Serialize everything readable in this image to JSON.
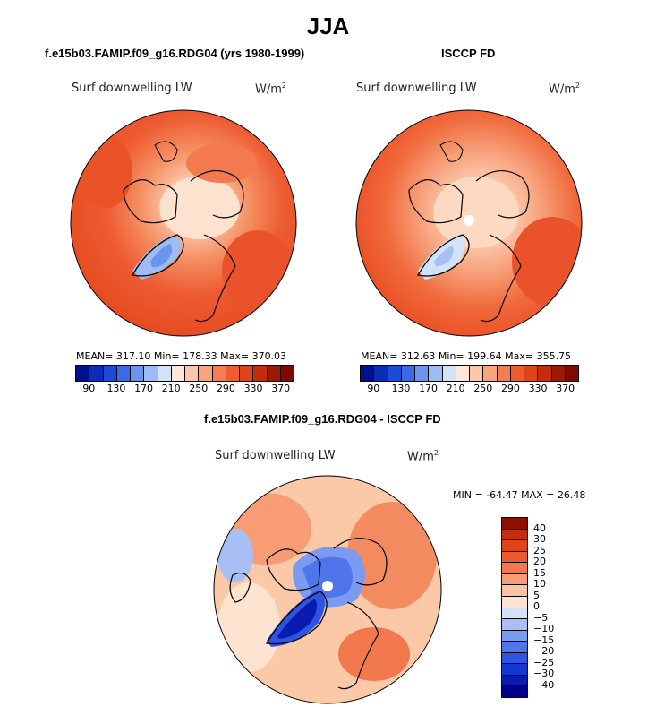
{
  "title": "JJA",
  "panels": {
    "left": {
      "title": "f.e15b03.FAMIP.f09_g16.RDG04 (yrs 1980-1999)",
      "label": "Surf downwelling LW",
      "units_base": "W/m",
      "units_exp": "2",
      "stats": "MEAN= 317.10   Min= 178.33   Max= 370.03"
    },
    "right": {
      "title": "ISCCP FD",
      "label": "Surf downwelling LW",
      "units_base": "W/m",
      "units_exp": "2",
      "stats": "MEAN= 312.63   Min= 199.64   Max= 355.75"
    },
    "diff": {
      "title": "f.e15b03.FAMIP.f09_g16.RDG04 - ISCCP FD",
      "label": "Surf downwelling LW",
      "units_base": "W/m",
      "units_exp": "2",
      "stats": "MIN = -64.47 MAX =  26.48"
    }
  },
  "colorbars": {
    "abs_colors": [
      "#00108c",
      "#0b2cb4",
      "#1e4bd6",
      "#3a6be6",
      "#6a95ee",
      "#9dbcf3",
      "#d2e2f7",
      "#fde7d6",
      "#fcc7a8",
      "#f9a47c",
      "#f47d55",
      "#ee5c32",
      "#e04318",
      "#c22e0c",
      "#9b1a04",
      "#7d0b02"
    ],
    "abs_ticks": [
      "90",
      "130",
      "170",
      "210",
      "250",
      "290",
      "330",
      "370"
    ],
    "diff_colors": [
      "#00008a",
      "#0a1cb0",
      "#1438cf",
      "#2d55e0",
      "#4f75ea",
      "#7b9bf0",
      "#a7bff4",
      "#d4e1f8",
      "#fde3d0",
      "#fbc2a1",
      "#f79c74",
      "#f2784e",
      "#ec5a30",
      "#e04318",
      "#c22e0c",
      "#8c0f02"
    ],
    "diff_ticks": [
      "40",
      "30",
      "25",
      "20",
      "15",
      "10",
      "5",
      "0",
      "−5",
      "−10",
      "−15",
      "−20",
      "−25",
      "−30",
      "−40"
    ]
  },
  "chart_data": [
    {
      "type": "heatmap",
      "title": "f.e15b03.FAMIP.f09_g16.RDG04 (yrs 1980-1999)",
      "variable": "Surf downwelling LW",
      "units": "W/m2",
      "mean": 317.1,
      "min": 178.33,
      "max": 370.03,
      "colorbar_range": [
        90,
        370
      ],
      "colorbar_levels": [
        90,
        110,
        130,
        150,
        170,
        190,
        210,
        230,
        250,
        270,
        290,
        310,
        330,
        350,
        370
      ]
    },
    {
      "type": "heatmap",
      "title": "ISCCP FD",
      "variable": "Surf downwelling LW",
      "units": "W/m2",
      "mean": 312.63,
      "min": 199.64,
      "max": 355.75,
      "colorbar_range": [
        90,
        370
      ],
      "colorbar_levels": [
        90,
        110,
        130,
        150,
        170,
        190,
        210,
        230,
        250,
        270,
        290,
        310,
        330,
        350,
        370
      ]
    },
    {
      "type": "heatmap",
      "title": "f.e15b03.FAMIP.f09_g16.RDG04 - ISCCP FD",
      "variable": "Surf downwelling LW",
      "units": "W/m2",
      "min": -64.47,
      "max": 26.48,
      "colorbar_levels": [
        -40,
        -30,
        -25,
        -20,
        -15,
        -10,
        -5,
        0,
        5,
        10,
        15,
        20,
        25,
        30,
        40
      ]
    }
  ]
}
